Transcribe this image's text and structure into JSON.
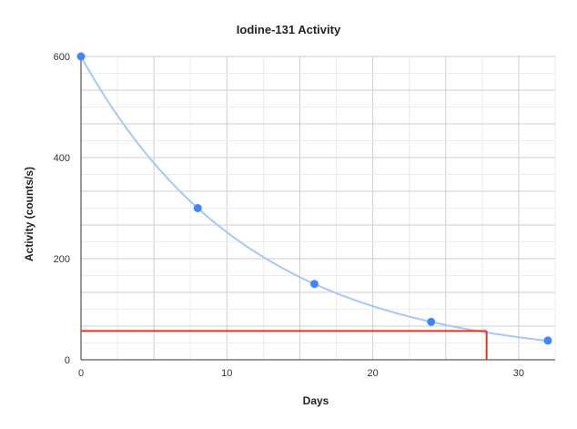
{
  "chart_data": {
    "type": "scatter",
    "title": "Iodine-131 Activity",
    "xlabel": "Days",
    "ylabel": "Activity (counts/s)",
    "xlim": [
      0,
      32.5
    ],
    "ylim": [
      0,
      600
    ],
    "x_ticks": [
      0,
      10,
      20,
      30
    ],
    "y_ticks": [
      0,
      200,
      400,
      600
    ],
    "grid": true,
    "legend": "none",
    "series": [
      {
        "x": [
          0,
          8,
          16,
          24,
          32
        ],
        "y": [
          600,
          300,
          150,
          75,
          38
        ],
        "color": "#4285f4"
      }
    ],
    "trendline": {
      "type": "exponential",
      "initial": 600,
      "half_life_days": 8,
      "color": "#a7c7f7"
    },
    "reference_lines": {
      "color": "#e8321e",
      "y": 57,
      "x": 27.8
    }
  }
}
